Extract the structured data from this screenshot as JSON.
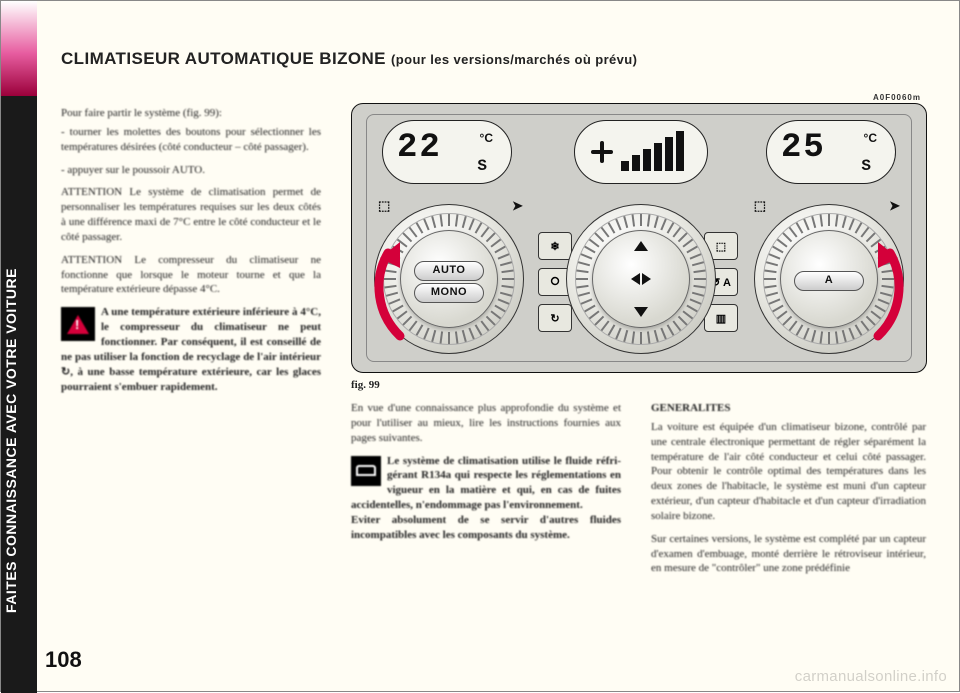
{
  "spine_text": "FAITES CONNAISSANCE AVEC VOTRE VOITURE",
  "page_number": "108",
  "title_main": "CLIMATISEUR AUTOMATIQUE BIZONE",
  "title_sub": "(pour les versions/marchés où prévu)",
  "fig_label": "fig. 99",
  "fig_code": "A0F0060m",
  "watermark": "carmanualsonline.info",
  "panel": {
    "lcd_left": {
      "digits": "22",
      "unit": "°C",
      "sub": "S"
    },
    "lcd_right": {
      "digits": "25",
      "unit": "°C",
      "sub": "S"
    },
    "fan_bars": [
      10,
      16,
      22,
      28,
      34,
      40
    ],
    "dial_left": {
      "top": "AUTO",
      "bottom": "MONO"
    },
    "dial_right_btn": "A",
    "arrow_color": "#d4003a",
    "background": "#cfcfca"
  },
  "col1": [
    "Pour faire partir le système (fig. 99):",
    "- tourner les molettes des boutons pour sé­lectionner les températures désirées (côté conducteur – côté passager).",
    "- appuyer sur le poussoir AUTO.",
    "ATTENTION Le système de climatisation permet de personnaliser les températures requises sur les deux côtés à une différen­ce maxi de 7°C entre le côté conducteur et le côté passager.",
    "ATTENTION Le compresseur du clima­tiseur ne fonctionne que lorsque le moteur tourne et que la température extérieure dé­passe 4°C."
  ],
  "col1_warn": "A une température exté­rieure inférieure à 4°C, le compresseur du climatiseur ne peut fonctionner. Par consé­quent, il est conseillé de ne pas uti­liser la fonction de recyclage de l'air intérieur ↻, à une basse tem­pérature extérieure, car les glaces pourraient s'embuer rapidement.",
  "col2_top": "En vue d'une connaissance plus appro­fondie du système et pour l'utiliser au mieux, lire les instructions fournies aux pages suivantes.",
  "col2_warn": "Le système de climatisa­tion utilise le fluide réfri­gérant R134a qui respec­te les réglementations en vigueur en la matière et qui, en cas de fuites accidentelles, n'endomma­ge pas l'environnement.\nEviter absolument de se servir d'autres fluides incompatibles avec les composants du système.",
  "col3_heading": "GENERALITES",
  "col3": [
    "La voiture est équipée d'un climatiseur bi­zone, contrôlé par une centrale électronique permettant de régler séparément la tempé­rature de l'air côté conducteur et celui côté passager. Pour obtenir le contrôle optimal des températures dans les deux zones de l'habitacle, le système est muni d'un cap­teur extérieur, d'un capteur d'habitacle et d'un capteur d'irradiation solaire bizone.",
    "Sur certaines versions, le système est com­plété par un capteur d'examen d'embuage, monté derrière le rétroviseur intérieur, en mesure de \"contrôler\" une zone prédéfinie"
  ]
}
